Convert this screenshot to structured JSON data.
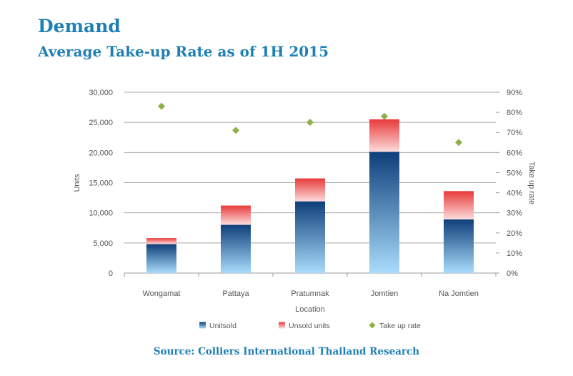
{
  "header": {
    "title": "Demand",
    "subtitle": "Average Take-up Rate as of 1H 2015"
  },
  "source": "Source: Colliers International Thailand Research",
  "colors": {
    "heading": "#1f7fb4",
    "sold_top": "#0e3f7a",
    "sold_bottom": "#a9dcfb",
    "unsold_top": "#e83a3a",
    "unsold_bottom": "#fcdcdc",
    "take_up": "#8cb04a"
  },
  "chart_data": {
    "type": "bar",
    "stacked": true,
    "categories": [
      "Wongamat",
      "Pattaya",
      "Pratumnak",
      "Jomtien",
      "Na Jomtien"
    ],
    "xlabel": "Location",
    "ylabel": "Units",
    "y2label": "Take up rate",
    "ylim": [
      0,
      30000
    ],
    "yticks": [
      "30,000",
      "25,000",
      "20,000",
      "15,000",
      "10,000",
      "5,000",
      "0"
    ],
    "y2lim": [
      0,
      90
    ],
    "y2ticks": [
      "90%",
      "80%",
      "70%",
      "60%",
      "50%",
      "40%",
      "30%",
      "20%",
      "10%",
      "0%"
    ],
    "series": [
      {
        "name": "Unitsold",
        "type": "bar",
        "axis": "left",
        "values": [
          4800,
          8000,
          11900,
          20100,
          8900
        ]
      },
      {
        "name": "Unsold units",
        "type": "bar",
        "axis": "left",
        "values": [
          1000,
          3200,
          3800,
          5400,
          4700
        ]
      },
      {
        "name": "Take up rate",
        "type": "scatter",
        "axis": "right",
        "values": [
          83,
          71,
          75,
          78,
          65
        ]
      }
    ],
    "legend_position": "bottom",
    "grid": "horizontal"
  }
}
